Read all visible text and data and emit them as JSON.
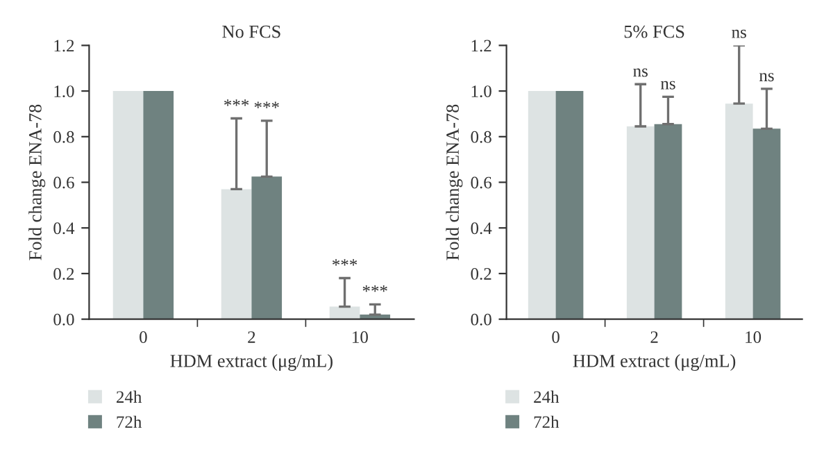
{
  "chart_data": [
    {
      "type": "bar",
      "title": "No FCS",
      "xlabel": "HDM extract (μg/mL)",
      "ylabel": "Fold change ENA-78",
      "categories": [
        "0",
        "2",
        "10"
      ],
      "ylim": [
        0,
        1.2
      ],
      "yticks": [
        {
          "value": 0,
          "label": "0.0"
        },
        {
          "value": 0.2,
          "label": "0.2"
        },
        {
          "value": 0.4,
          "label": "0.4"
        },
        {
          "value": 0.6,
          "label": "0.6"
        },
        {
          "value": 0.8,
          "label": "0.8"
        },
        {
          "value": 1.0,
          "label": "1.0"
        },
        {
          "value": 1.2,
          "label": "1.2"
        }
      ],
      "legend": "bottom left",
      "grid": false,
      "series": [
        {
          "name": "24h",
          "color": "#dde3e3",
          "values": [
            1.0,
            0.57,
            0.055
          ],
          "errors": [
            null,
            [
              0.57,
              0.88
            ],
            [
              0.055,
              0.18
            ]
          ]
        },
        {
          "name": "72h",
          "color": "#6f8280",
          "values": [
            1.0,
            0.625,
            0.02
          ],
          "errors": [
            null,
            [
              0.625,
              0.87
            ],
            [
              0.02,
              0.065
            ]
          ]
        }
      ],
      "annotations": [
        "***",
        "***",
        "***",
        "***"
      ]
    },
    {
      "type": "bar",
      "title": "5% FCS",
      "xlabel": "HDM extract (μg/mL)",
      "ylabel": "Fold change ENA-78",
      "categories": [
        "0",
        "2",
        "10"
      ],
      "ylim": [
        0,
        1.2
      ],
      "yticks": [
        {
          "value": 0,
          "label": "0.0"
        },
        {
          "value": 0.2,
          "label": "0.2"
        },
        {
          "value": 0.4,
          "label": "0.4"
        },
        {
          "value": 0.6,
          "label": "0.6"
        },
        {
          "value": 0.8,
          "label": "0.8"
        },
        {
          "value": 1.0,
          "label": "1.0"
        },
        {
          "value": 1.2,
          "label": "1.2"
        }
      ],
      "legend": "bottom left",
      "grid": false,
      "series": [
        {
          "name": "24h",
          "color": "#dde3e3",
          "values": [
            1.0,
            0.845,
            0.945
          ],
          "errors": [
            null,
            [
              0.845,
              1.03
            ],
            [
              0.945,
              1.2
            ]
          ]
        },
        {
          "name": "72h",
          "color": "#6f8280",
          "values": [
            1.0,
            0.855,
            0.835
          ],
          "errors": [
            null,
            [
              0.855,
              0.975
            ],
            [
              0.835,
              1.01
            ]
          ]
        }
      ],
      "annotations": [
        "ns",
        "ns",
        "ns",
        "ns"
      ]
    }
  ]
}
